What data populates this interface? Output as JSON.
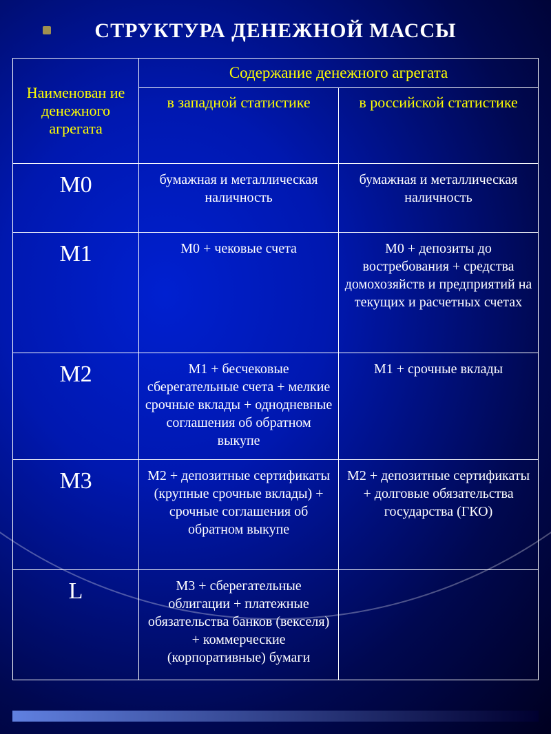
{
  "title": "СТРУКТУРА  ДЕНЕЖНОЙ  МАССЫ",
  "headers": {
    "name": "Наименован ие денежного агрегата",
    "content": "Содержание денежного агрегата",
    "western": "в западной статистике",
    "russian": "в российской статистике"
  },
  "rows": [
    {
      "name": "М0",
      "western": "бумажная и металлическая наличность",
      "russian": "бумажная и металлическая наличность"
    },
    {
      "name": "М1",
      "western": "М0 + чековые счета",
      "russian": "М0 + депозиты до востребования + средства домохозяйств и предприятий на текущих и расчетных счетах"
    },
    {
      "name": "М2",
      "western": "М1 + бесчековые сберегательные счета + мелкие срочные вклады + однодневные соглашения об обратном выкупе",
      "russian": "М1 + срочные вклады"
    },
    {
      "name": "М3",
      "western": "М2 + депозитные сертификаты (крупные срочные вклады) + срочные соглашения об обратном выкупе",
      "russian": "М2 + депозитные сертификаты + долговые обязательства государства (ГКО)"
    },
    {
      "name": "L",
      "western": "М3 + сберегательные облигации + платежные обязательства банков (векселя) + коммерческие (корпоративные) бумаги",
      "russian": ""
    }
  ],
  "colors": {
    "title_color": "#ffffff",
    "header_color": "#ffff00",
    "text_color": "#ffffff",
    "border_color": "#ffffff"
  }
}
